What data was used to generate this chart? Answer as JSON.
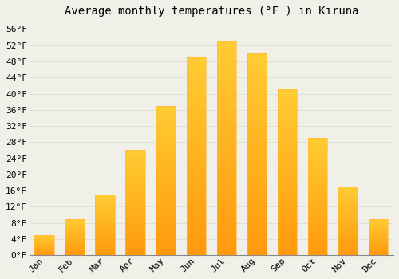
{
  "title": "Average monthly temperatures (°F ) in Kiruna",
  "months": [
    "Jan",
    "Feb",
    "Mar",
    "Apr",
    "May",
    "Jun",
    "Jul",
    "Aug",
    "Sep",
    "Oct",
    "Nov",
    "Dec"
  ],
  "values": [
    5,
    9,
    15,
    26,
    37,
    49,
    53,
    50,
    41,
    29,
    17,
    9
  ],
  "bar_color_top": "#FFC020",
  "bar_color_bottom": "#FFB020",
  "background_color": "#F0EFE8",
  "grid_color": "#DDDDCC",
  "ylim": [
    0,
    58
  ],
  "yticks": [
    0,
    4,
    8,
    12,
    16,
    20,
    24,
    28,
    32,
    36,
    40,
    44,
    48,
    52,
    56
  ],
  "ytick_labels": [
    "0°F",
    "4°F",
    "8°F",
    "12°F",
    "16°F",
    "20°F",
    "24°F",
    "28°F",
    "32°F",
    "36°F",
    "40°F",
    "44°F",
    "48°F",
    "52°F",
    "56°F"
  ],
  "title_fontsize": 10,
  "tick_fontsize": 8,
  "font_family": "monospace",
  "bar_width": 0.65
}
